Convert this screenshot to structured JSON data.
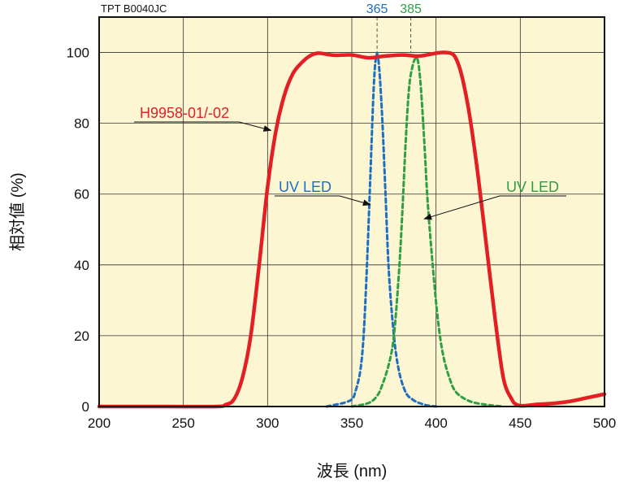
{
  "chart_data": {
    "type": "line",
    "code": "TPT B0040JC",
    "xlabel": "波長 (nm)",
    "ylabel": "相対値 (%)",
    "xlim": [
      200,
      500
    ],
    "ylim": [
      0,
      110
    ],
    "x_ticks": [
      200,
      250,
      300,
      350,
      400,
      450,
      500
    ],
    "y_ticks": [
      0,
      20,
      40,
      60,
      80,
      100
    ],
    "grid": true,
    "background_color": "#fcf6d2",
    "series": [
      {
        "name": "H9958-01/-02",
        "color": "#e31e24",
        "style": "solid",
        "x": [
          200,
          240,
          270,
          275,
          280,
          285,
          290,
          295,
          300,
          305,
          310,
          315,
          320,
          325,
          330,
          335,
          340,
          350,
          360,
          370,
          380,
          390,
          400,
          405,
          410,
          413,
          416,
          420,
          425,
          430,
          435,
          440,
          445,
          448,
          452,
          460,
          470,
          480,
          490,
          500
        ],
        "y": [
          0,
          0,
          0,
          0.5,
          2,
          8,
          20,
          40,
          62,
          78,
          88,
          94,
          97,
          99,
          99.8,
          99.5,
          99.2,
          99.3,
          98.5,
          99,
          99.3,
          99,
          99.8,
          100,
          99.5,
          97,
          92,
          82,
          65,
          45,
          25,
          8,
          2,
          0.5,
          0.2,
          0.6,
          0.9,
          1.5,
          2.5,
          3.5
        ]
      },
      {
        "name": "UV LED",
        "color": "#1e6fbf",
        "style": "dashed",
        "x": [
          335,
          340,
          345,
          350,
          352,
          355,
          357,
          359,
          361,
          363,
          364.5,
          366,
          368,
          370,
          372,
          375,
          378,
          382,
          386,
          390,
          395,
          400
        ],
        "y": [
          0,
          0.5,
          1,
          2,
          4,
          10,
          20,
          40,
          65,
          90,
          99,
          97,
          82,
          60,
          38,
          20,
          10,
          4,
          2,
          1,
          0.3,
          0
        ]
      },
      {
        "name": "UV LED",
        "color": "#2f9e44",
        "style": "dashed",
        "x": [
          350,
          360,
          365,
          368,
          372,
          375,
          378,
          380,
          382,
          384,
          386,
          388,
          389.5,
          391,
          393,
          395,
          398,
          401,
          404,
          408,
          412,
          420,
          430,
          440
        ],
        "y": [
          0,
          1,
          3,
          6,
          12,
          20,
          38,
          55,
          75,
          90,
          96,
          98.5,
          97,
          90,
          75,
          58,
          40,
          25,
          15,
          8,
          4,
          1.5,
          0.5,
          0
        ]
      }
    ],
    "annotations": [
      {
        "text": "H9958-01/-02",
        "series": 0,
        "color": "#e31e24"
      },
      {
        "text": "UV LED",
        "series": 1,
        "color": "#1e6fbf"
      },
      {
        "text": "UV LED",
        "series": 2,
        "color": "#2f9e44"
      }
    ],
    "markers": [
      {
        "text": "365",
        "x": 365,
        "color": "#1e6fbf"
      },
      {
        "text": "385",
        "x": 385,
        "color": "#2f9e44"
      }
    ]
  }
}
